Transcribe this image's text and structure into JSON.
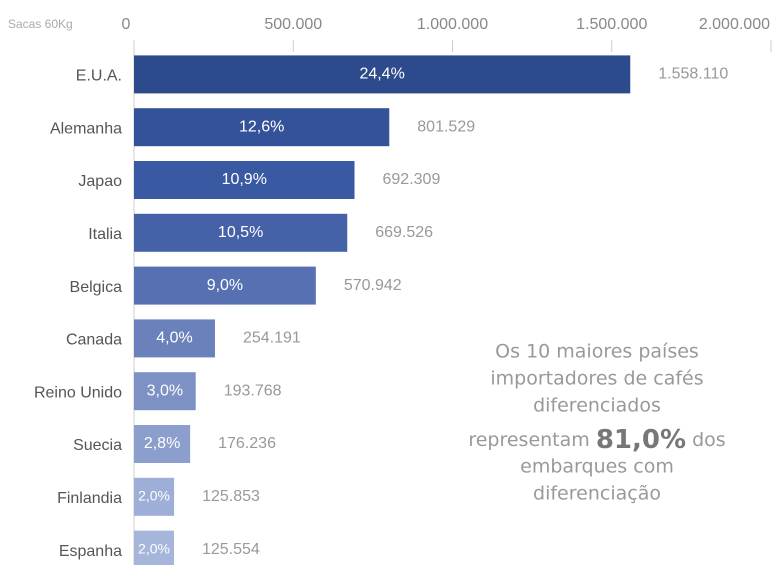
{
  "chart_data": {
    "type": "bar",
    "orientation": "horizontal",
    "axis_label": "Sacas 60Kg",
    "categories": [
      "E.U.A.",
      "Alemanha",
      "Japao",
      "Italia",
      "Belgica",
      "Canada",
      "Reino Unido",
      "Suecia",
      "Finlandia",
      "Espanha"
    ],
    "values": [
      1558110,
      801529,
      692309,
      669526,
      570942,
      254191,
      193768,
      176236,
      125853,
      125554
    ],
    "value_labels": [
      "1.558.110",
      "801.529",
      "692.309",
      "669.526",
      "570.942",
      "254.191",
      "193.768",
      "176.236",
      "125.853",
      "125.554"
    ],
    "shares": [
      24.4,
      12.6,
      10.9,
      10.5,
      9.0,
      4.0,
      3.0,
      2.8,
      2.0,
      2.0
    ],
    "share_labels": [
      "24,4%",
      "12,6%",
      "10,9%",
      "10,5%",
      "9,0%",
      "4,0%",
      "3,0%",
      "2,8%",
      "2,0%",
      "2,0%"
    ],
    "colors": [
      "#2d4a8c",
      "#34529a",
      "#3a59a3",
      "#4562a9",
      "#5670b2",
      "#6a81bc",
      "#7d91c5",
      "#8b9ecc",
      "#9dafd7",
      "#a6b6db"
    ],
    "xlim": [
      0,
      2000000
    ],
    "xticks": [
      0,
      {
        "value": 500000,
        "label": "500.000"
      },
      {
        "value": 1000000,
        "label": "1.000.000"
      },
      {
        "value": 1500000,
        "label": "1.500.000"
      },
      {
        "value": 2000000,
        "label": "2.000.000"
      }
    ],
    "annotation": {
      "lines_before": [
        "Os 10 maiores países",
        "importadores de cafés",
        "diferenciados"
      ],
      "before": "representam",
      "highlight": "81,0%",
      "after": "dos",
      "lines_after": [
        "embarques com",
        "diferenciação"
      ]
    }
  }
}
